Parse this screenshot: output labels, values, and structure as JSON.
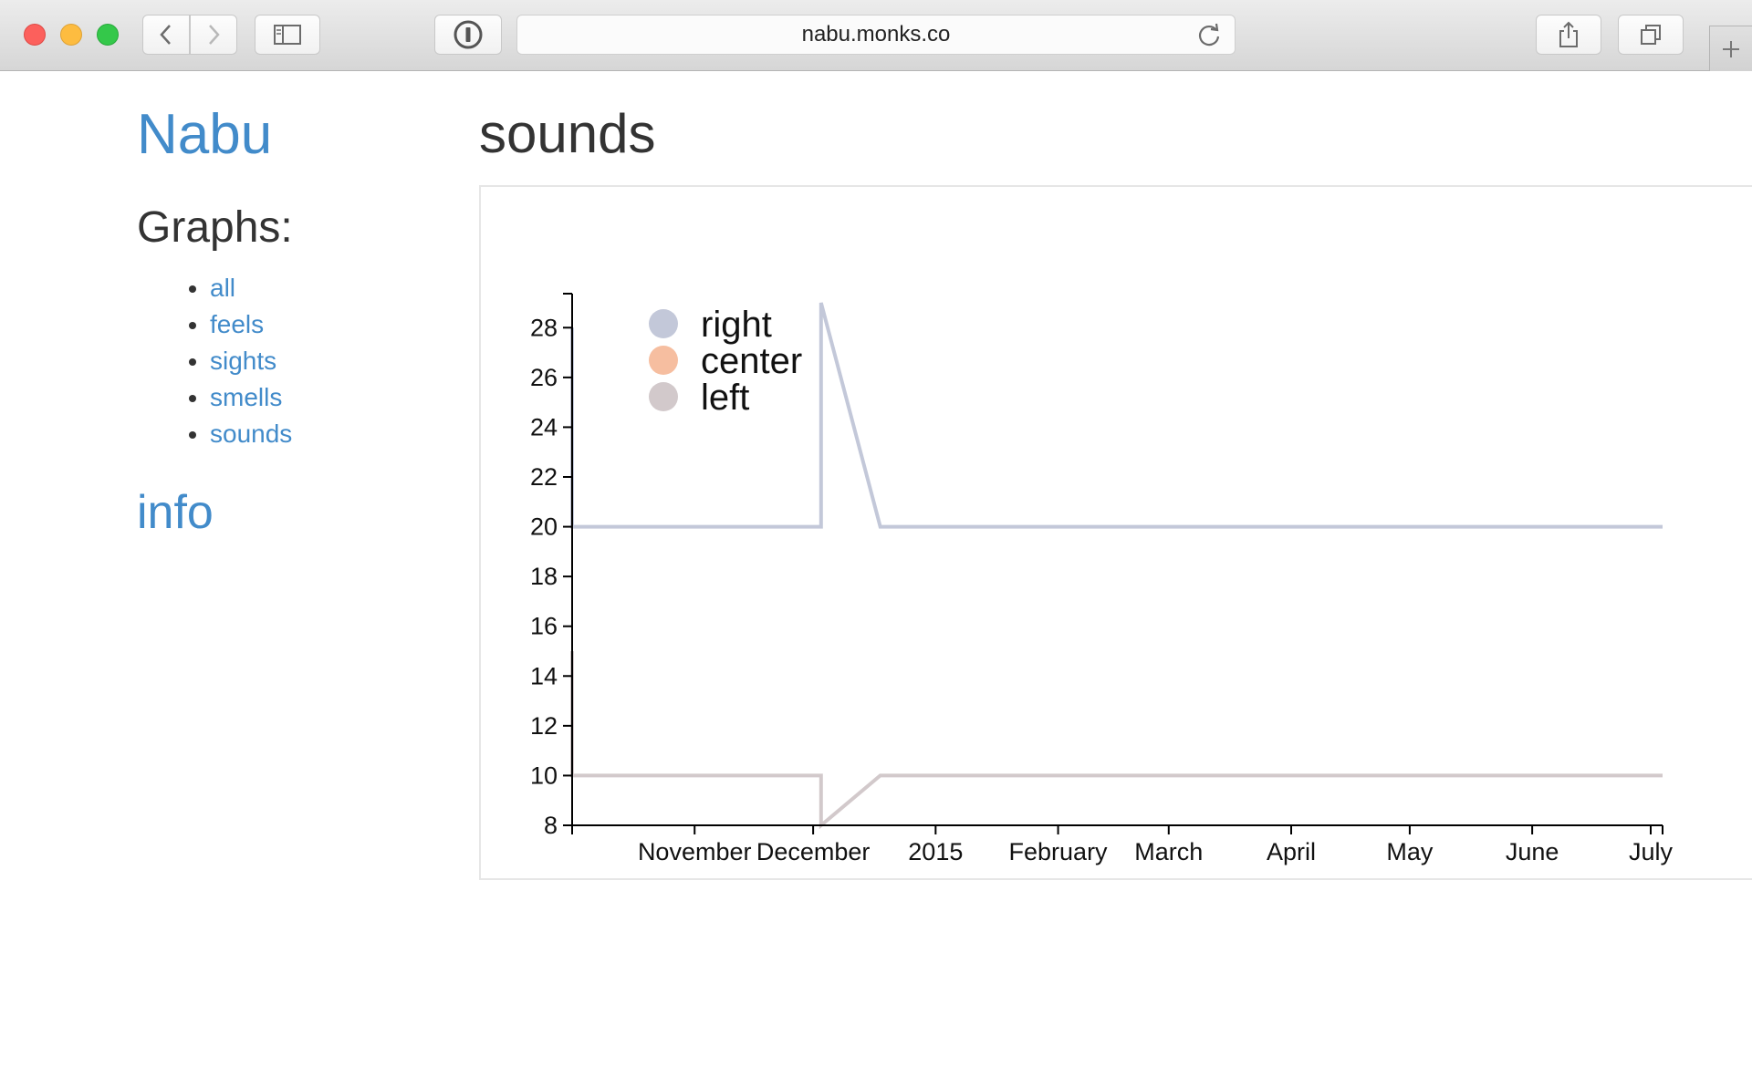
{
  "browser": {
    "url": "nabu.monks.co"
  },
  "icons": {
    "back": "chevron-left-icon",
    "forward": "chevron-right-icon",
    "sidebar": "sidebar-icon",
    "password": "password-manager-icon",
    "reload": "reload-icon",
    "share": "share-icon",
    "tabs": "tabs-overview-icon",
    "new_tab": "plus-icon"
  },
  "sidebar": {
    "brand": "Nabu",
    "graphs_heading": "Graphs:",
    "links": [
      {
        "label": "all"
      },
      {
        "label": "feels"
      },
      {
        "label": "sights"
      },
      {
        "label": "smells"
      },
      {
        "label": "sounds"
      }
    ],
    "info": "info"
  },
  "page": {
    "title": "sounds"
  },
  "colors": {
    "link": "#428bca",
    "right": "#c3c8d9",
    "center": "#f6bea0",
    "left": "#d2c9cb"
  },
  "chart_data": {
    "type": "line",
    "title": "sounds",
    "xlabel": "",
    "ylabel": "",
    "ylim": [
      8,
      29
    ],
    "xlim": [
      "2014-10-01",
      "2015-07-04"
    ],
    "y_ticks": [
      8,
      10,
      12,
      14,
      16,
      18,
      20,
      22,
      24,
      26,
      28
    ],
    "x_ticks": [
      {
        "date": "2014-11-01",
        "label": "November"
      },
      {
        "date": "2014-12-01",
        "label": "December"
      },
      {
        "date": "2015-01-01",
        "label": "2015"
      },
      {
        "date": "2015-02-01",
        "label": "February"
      },
      {
        "date": "2015-03-01",
        "label": "March"
      },
      {
        "date": "2015-04-01",
        "label": "April"
      },
      {
        "date": "2015-05-01",
        "label": "May"
      },
      {
        "date": "2015-06-01",
        "label": "June"
      },
      {
        "date": "2015-07-01",
        "label": "July"
      }
    ],
    "legend": [
      "right",
      "center",
      "left"
    ],
    "legend_position": "top-left",
    "series": [
      {
        "name": "right",
        "color": "#c3c8d9",
        "points": [
          [
            "2014-10-01",
            28
          ],
          [
            "2014-10-01",
            20
          ],
          [
            "2014-12-03",
            20
          ],
          [
            "2014-12-03",
            29
          ],
          [
            "2014-12-18",
            20
          ],
          [
            "2015-07-04",
            20
          ]
        ]
      },
      {
        "name": "center",
        "color": "#f6bea0",
        "points": []
      },
      {
        "name": "left",
        "color": "#d2c9cb",
        "points": [
          [
            "2014-10-01",
            15
          ],
          [
            "2014-10-01",
            10
          ],
          [
            "2014-12-03",
            10
          ],
          [
            "2014-12-03",
            8
          ],
          [
            "2014-12-18",
            10
          ],
          [
            "2015-07-04",
            10
          ]
        ]
      }
    ]
  }
}
